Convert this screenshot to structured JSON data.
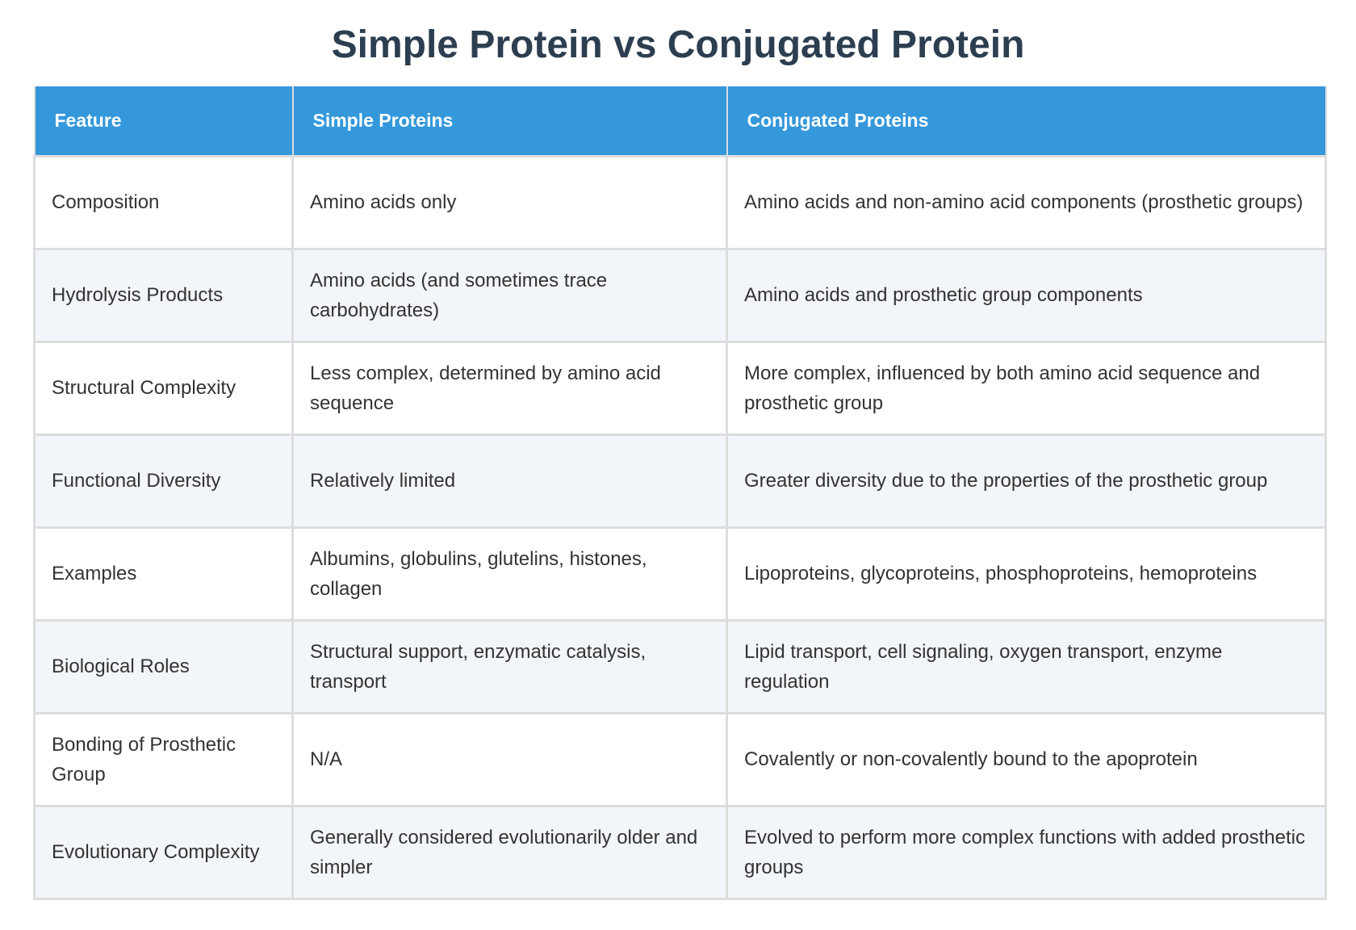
{
  "title": "Simple Protein vs Conjugated Protein",
  "table": {
    "headers": [
      "Feature",
      "Simple Proteins",
      "Conjugated Proteins"
    ],
    "rows": [
      [
        "Composition",
        "Amino acids only",
        "Amino acids and non-amino acid components (prosthetic groups)"
      ],
      [
        "Hydrolysis Products",
        "Amino acids (and sometimes trace carbohydrates)",
        "Amino acids and prosthetic group components"
      ],
      [
        "Structural Complexity",
        "Less complex, determined by amino acid sequence",
        "More complex, influenced by both amino acid sequence and prosthetic group"
      ],
      [
        "Functional Diversity",
        "Relatively limited",
        "Greater diversity due to the properties of the prosthetic group"
      ],
      [
        "Examples",
        "Albumins, globulins, glutelins, histones, collagen",
        "Lipoproteins, glycoproteins, phosphoproteins, hemoproteins"
      ],
      [
        "Biological Roles",
        "Structural support, enzymatic catalysis, transport",
        "Lipid transport, cell signaling, oxygen transport, enzyme regulation"
      ],
      [
        "Bonding of Prosthetic Group",
        "N/A",
        "Covalently or non-covalently bound to the apoprotein"
      ],
      [
        "Evolutionary Complexity",
        "Generally considered evolutionarily older and simpler",
        "Evolved to perform more complex functions with added prosthetic groups"
      ]
    ]
  },
  "colors": {
    "header_bg": "#3498db",
    "title": "#2c3e50",
    "row_alt_bg": "#f2f5f9",
    "border": "#dddddd"
  }
}
